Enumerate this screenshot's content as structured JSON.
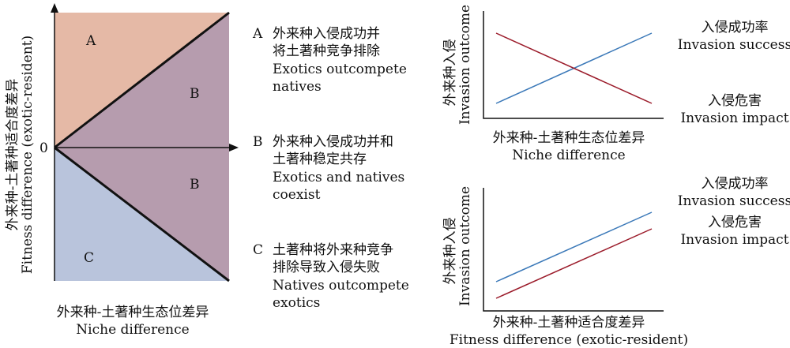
{
  "left_panel": {
    "regions": {
      "a": "A",
      "b_upper": "B",
      "b_lower": "B",
      "c": "C"
    },
    "origin_label": "0",
    "ylabel_zh": "外来种-土著种适合度差异",
    "ylabel_en": "Fitness difference (exotic-resident)",
    "xlabel_zh": "外来种-土著种生态位差异",
    "xlabel_en": "Niche difference",
    "colors": {
      "a": "#e5b9a6",
      "b": "#b69cae",
      "c": "#b9c4dc"
    }
  },
  "legend": [
    {
      "key": "A",
      "line1": "外来种入侵成功并",
      "line2": "将土著种竞争排除",
      "line3": "Exotics outcompete",
      "line4": "natives"
    },
    {
      "key": "B",
      "line1": "外来种入侵成功并和",
      "line2": "土著种稳定共存",
      "line3": "Exotics and natives",
      "line4": "coexist"
    },
    {
      "key": "C",
      "line1": "土著种将外来种竞争",
      "line2": "排除导致入侵失败",
      "line3": "Natives outcompete",
      "line4": "exotics"
    }
  ],
  "top_chart": {
    "ylabel_zh": "外来种入侵",
    "ylabel_en": "Invasion outcome",
    "xlabel_zh": "外来种-土著种生态位差异",
    "xlabel_en": "Niche difference",
    "success_zh": "入侵成功率",
    "success_en": "Invasion success",
    "impact_zh": "入侵危害",
    "impact_en": "Invasion impact"
  },
  "bottom_chart": {
    "ylabel_zh": "外来种入侵",
    "ylabel_en": "Invasion outcome",
    "xlabel_zh": "外来种-土著种适合度差异",
    "xlabel_en": "Fitness difference (exotic-resident)",
    "success_zh": "入侵成功率",
    "success_en": "Invasion success",
    "impact_zh": "入侵危害",
    "impact_en": "Invasion impact"
  },
  "line_colors": {
    "success": "#3a78b8",
    "impact": "#9b1b2a"
  }
}
